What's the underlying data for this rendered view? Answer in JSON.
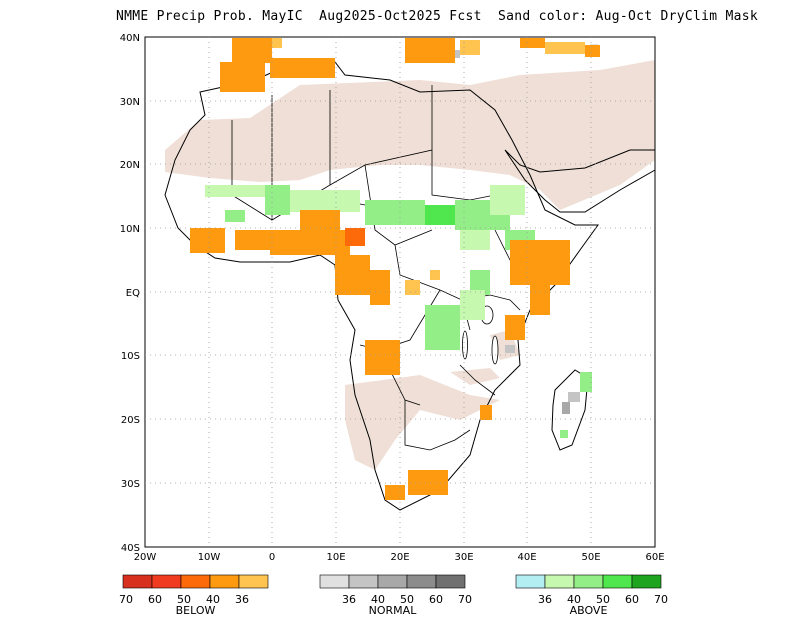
{
  "title": "NMME Precip Prob. MayIC  Aug2025-Oct2025 Fcst  Sand color: Aug-Oct DryClim Mask",
  "axes": {
    "lon_ticks": [
      "20W",
      "10W",
      "0",
      "10E",
      "20E",
      "30E",
      "40E",
      "50E",
      "60E"
    ],
    "lat_ticks": [
      "40N",
      "30N",
      "20N",
      "10N",
      "EQ",
      "10S",
      "20S",
      "30S",
      "40S"
    ]
  },
  "colors": {
    "dry_mask": "#efdfd6",
    "land_line": "#000000",
    "grid": "#9a9a9a"
  },
  "legend": {
    "below": {
      "label": "BELOW",
      "colors": [
        "#d7301f",
        "#f03b20",
        "#fd6a0a",
        "#fd9a10",
        "#fec44f"
      ],
      "ticks": [
        "70",
        "60",
        "50",
        "40",
        "36"
      ]
    },
    "normal": {
      "label": "NORMAL",
      "colors": [
        "#e0e0e0",
        "#c4c4c4",
        "#a8a8a8",
        "#8c8c8c",
        "#707070"
      ],
      "ticks": [
        "36",
        "40",
        "50",
        "60",
        "70"
      ]
    },
    "above": {
      "label": "ABOVE",
      "colors": [
        "#b3eef3",
        "#c7f8b0",
        "#94ee87",
        "#50e64e",
        "#1ea41e"
      ],
      "ticks": [
        "36",
        "40",
        "50",
        "60",
        "70"
      ]
    }
  }
}
